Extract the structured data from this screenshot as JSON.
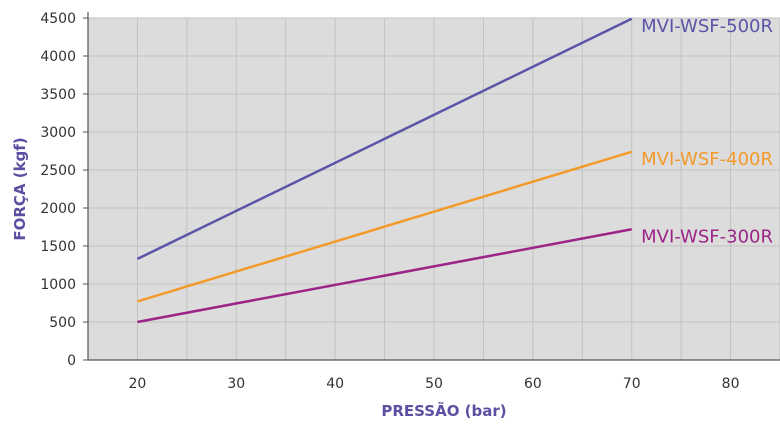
{
  "chart_data": {
    "type": "line",
    "title": "",
    "xlabel": "PRESSÃO (bar)",
    "ylabel": "FORÇA (kgf)",
    "xlim": [
      15,
      85
    ],
    "ylim": [
      0,
      4500
    ],
    "xticks": [
      20,
      30,
      40,
      50,
      60,
      70,
      80
    ],
    "yticks": [
      0,
      500,
      1000,
      1500,
      2000,
      2500,
      3000,
      3500,
      4000,
      4500
    ],
    "grid": true,
    "background": "#dcdcdc",
    "series": [
      {
        "name": "MVI-WSF-500R",
        "color": "#5b55a8",
        "x": [
          20,
          70
        ],
        "y": [
          1330,
          4490
        ]
      },
      {
        "name": "MVI-WSF-400R",
        "color": "#f39a2b",
        "x": [
          20,
          70
        ],
        "y": [
          770,
          2740
        ]
      },
      {
        "name": "MVI-WSF-300R",
        "color": "#9c2486",
        "x": [
          20,
          70
        ],
        "y": [
          500,
          1720
        ]
      }
    ]
  }
}
